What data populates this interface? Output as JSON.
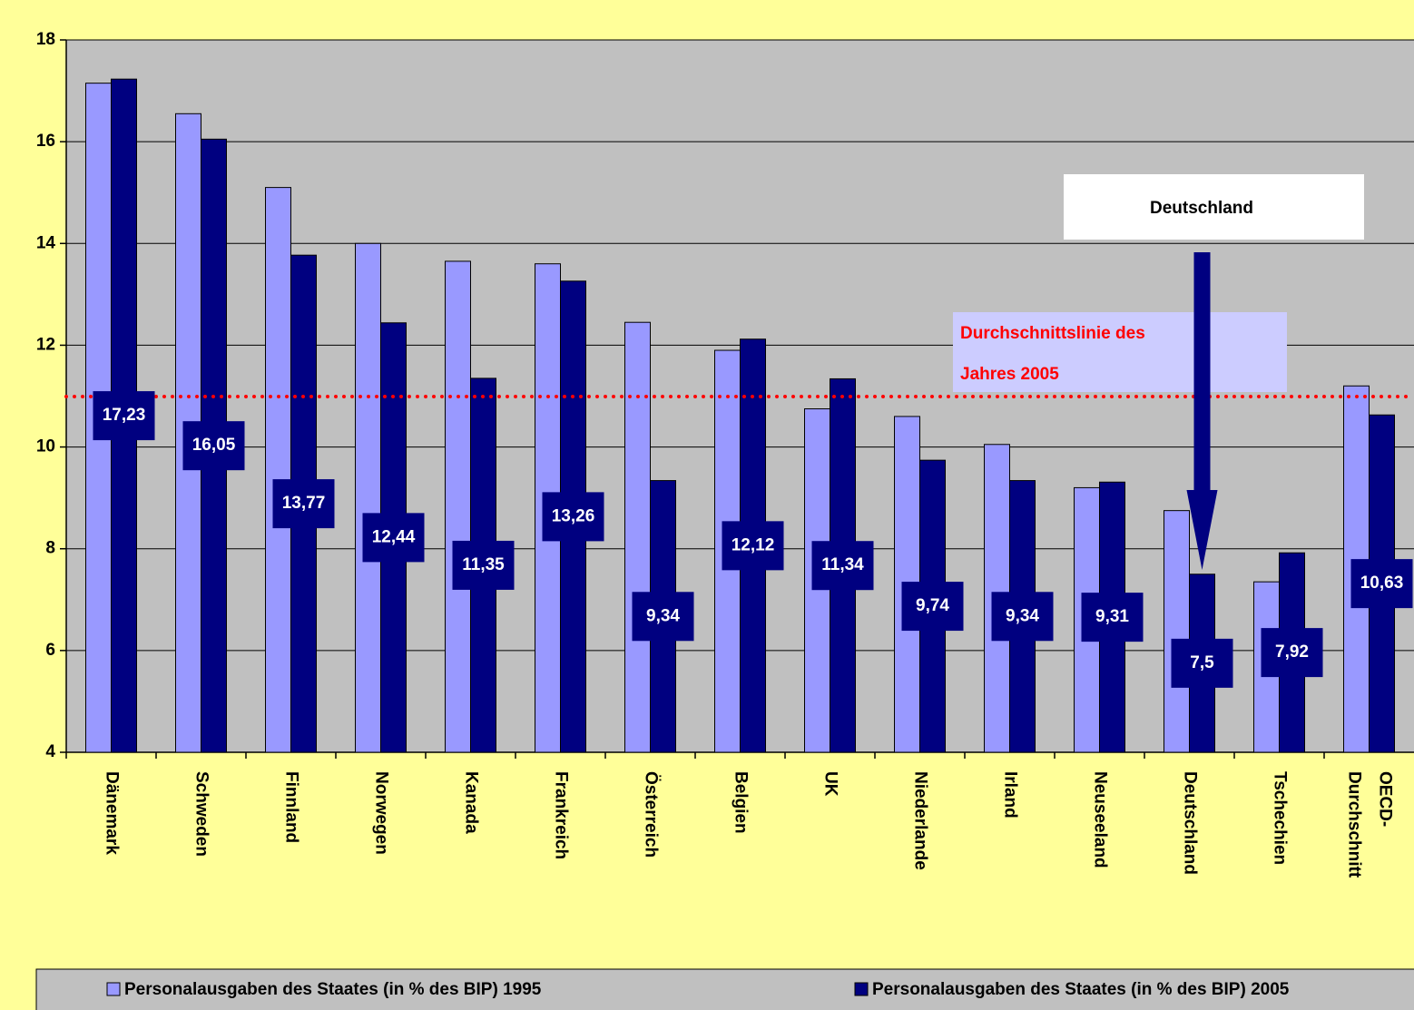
{
  "chart_data": {
    "type": "bar",
    "categories": [
      "Dänemark",
      "Schweden",
      "Finnland",
      "Norwegen",
      "Kanada",
      "Frankreich",
      "Österreich",
      "Belgien",
      "UK",
      "Niederlande",
      "Irland",
      "Neuseeland",
      "Deutschland",
      "Tschechien",
      "OECD-Durchschnitt"
    ],
    "series": [
      {
        "name": "Personalausgaben des Staates (in % des BIP)  1995",
        "color": "#9999ff",
        "values": [
          17.15,
          16.55,
          15.1,
          14.0,
          13.65,
          13.6,
          12.45,
          11.9,
          10.75,
          10.6,
          10.05,
          9.2,
          8.75,
          7.35,
          11.2
        ]
      },
      {
        "name": "Personalausgaben des Staates (in % des BIP) 2005",
        "color": "#000080",
        "values": [
          17.23,
          16.05,
          13.77,
          12.44,
          11.35,
          13.26,
          9.34,
          12.12,
          11.34,
          9.74,
          9.34,
          9.31,
          7.5,
          7.92,
          10.63
        ],
        "value_labels": [
          "17,23",
          "16,05",
          "13,77",
          "12,44",
          "11,35",
          "13,26",
          "9,34",
          "12,12",
          "11,34",
          "9,74",
          "9,34",
          "9,31",
          "7,5",
          "7,92",
          "10,63"
        ]
      }
    ],
    "ylim": [
      4,
      18
    ],
    "yticks": [
      4,
      6,
      8,
      10,
      12,
      14,
      16,
      18
    ],
    "grid": true,
    "legend": "bottom",
    "reference_line": {
      "value": 10.99,
      "color": "#ff0000",
      "label": [
        "Durchschnittslinie des",
        "Jahres 2005"
      ]
    },
    "annotation": {
      "text": "Deutschland",
      "category": 12
    }
  }
}
